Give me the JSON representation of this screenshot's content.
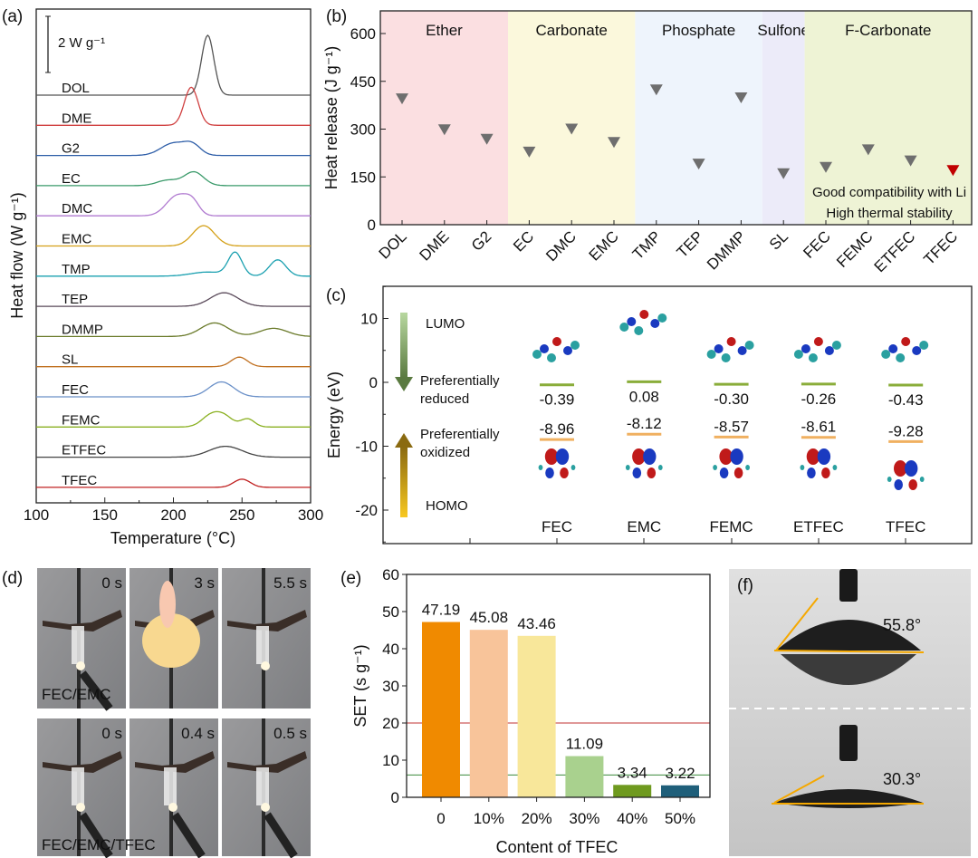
{
  "panel_labels": {
    "a": "(a)",
    "b": "(b)",
    "c": "(c)",
    "d": "(d)",
    "e": "(e)",
    "f": "(f)"
  },
  "chart_data": [
    {
      "type": "line",
      "title": "",
      "xlabel": "Temperature (°C)",
      "ylabel": "Heat flow (W g⁻¹)",
      "xlim": [
        100,
        300
      ],
      "xticks": [
        "100",
        "150",
        "200",
        "250",
        "300"
      ],
      "scale_bar": "2 W g⁻¹",
      "peak_format": "each peak = [temperature °C, height W/g, width °C]",
      "series": [
        {
          "name": "DOL",
          "color": "#555555",
          "peaks": [
            [
              225,
              2.2,
              4.5
            ]
          ]
        },
        {
          "name": "DME",
          "color": "#d04040",
          "peaks": [
            [
              213,
              1.4,
              5
            ]
          ]
        },
        {
          "name": "G2",
          "color": "#2e5ea8",
          "peaks": [
            [
              200,
              0.45,
              9
            ],
            [
              214,
              0.35,
              6
            ]
          ]
        },
        {
          "name": "EC",
          "color": "#3a9a6a",
          "peaks": [
            [
              196,
              0.2,
              8
            ],
            [
              215,
              0.5,
              7
            ]
          ]
        },
        {
          "name": "DMC",
          "color": "#b07ad0",
          "peaks": [
            [
              203,
              0.75,
              8
            ],
            [
              214,
              0.4,
              5
            ]
          ]
        },
        {
          "name": "EMC",
          "color": "#d4a017",
          "peaks": [
            [
              222,
              0.75,
              8
            ]
          ]
        },
        {
          "name": "TMP",
          "color": "#1aa0b0",
          "peaks": [
            [
              245,
              0.85,
              5
            ],
            [
              276,
              0.6,
              6
            ],
            [
              225,
              0.15,
              12
            ]
          ]
        },
        {
          "name": "TEP",
          "color": "#5a4a5a",
          "peaks": [
            [
              237,
              0.5,
              10
            ]
          ]
        },
        {
          "name": "DMMP",
          "color": "#6a7a2a",
          "peaks": [
            [
              230,
              0.5,
              10
            ],
            [
              273,
              0.3,
              10
            ]
          ]
        },
        {
          "name": "SL",
          "color": "#c07020",
          "peaks": [
            [
              248,
              0.35,
              6
            ]
          ]
        },
        {
          "name": "FEC",
          "color": "#6a90c8",
          "peaks": [
            [
              235,
              0.55,
              9
            ]
          ]
        },
        {
          "name": "FEMC",
          "color": "#8ab020",
          "peaks": [
            [
              228,
              0.45,
              7
            ],
            [
              238,
              0.3,
              6
            ],
            [
              254,
              0.3,
              5
            ]
          ]
        },
        {
          "name": "ETFEC",
          "color": "#444444",
          "peaks": [
            [
              238,
              0.4,
              12
            ]
          ]
        },
        {
          "name": "TFEC",
          "color": "#c02020",
          "peaks": [
            [
              250,
              0.3,
              6
            ]
          ]
        }
      ]
    },
    {
      "type": "scatter",
      "ylabel": "Heat release (J g⁻¹)",
      "ylim": [
        0,
        680
      ],
      "yticks": [
        "0",
        "150",
        "300",
        "450",
        "600"
      ],
      "categories": [
        "DOL",
        "DME",
        "G2",
        "EC",
        "DMC",
        "EMC",
        "TMP",
        "TEP",
        "DMMP",
        "SL",
        "FEC",
        "FEMC",
        "ETFEC",
        "TFEC"
      ],
      "values": [
        395,
        298,
        268,
        228,
        300,
        258,
        423,
        190,
        398,
        160,
        180,
        235,
        200,
        170
      ],
      "marker_color": "#6e6e6e",
      "highlight": {
        "category": "TFEC",
        "color": "#c00000"
      },
      "groups": [
        {
          "label": "Ether",
          "from": 0,
          "to": 2,
          "color": "#fbdfe1"
        },
        {
          "label": "Carbonate",
          "from": 3,
          "to": 5,
          "color": "#fbf8dc"
        },
        {
          "label": "Phosphate",
          "from": 6,
          "to": 8,
          "color": "#eef4fc"
        },
        {
          "label": "Sulfone",
          "from": 9,
          "to": 9,
          "color": "#ecebf9"
        },
        {
          "label": "F-Carbonate",
          "from": 10,
          "to": 13,
          "color": "#eef3d5"
        }
      ],
      "annotations": [
        "Good compatibility with Li",
        "High thermal stability"
      ]
    },
    {
      "type": "energy-level",
      "ylabel": "Energy (eV)",
      "ylim": [
        -25,
        15
      ],
      "yticks": [
        "-20",
        "-10",
        "0",
        "10"
      ],
      "categories": [
        "FEC",
        "EMC",
        "FEMC",
        "ETFEC",
        "TFEC"
      ],
      "lumo": [
        -0.39,
        0.08,
        -0.3,
        -0.26,
        -0.43
      ],
      "homo": [
        -8.96,
        -8.12,
        -8.57,
        -8.61,
        -9.28
      ],
      "lumo_labels": [
        "-0.39",
        "0.08",
        "-0.30",
        "-0.26",
        "-0.43"
      ],
      "homo_labels": [
        "-8.96",
        "-8.12",
        "-8.57",
        "-8.61",
        "-9.28"
      ],
      "lumo_color": "#8aad3a",
      "homo_color": "#f0b060",
      "annotations": {
        "lumo": "LUMO",
        "reduced": [
          "Preferentially",
          "reduced"
        ],
        "oxidized": [
          "Preferentially",
          "oxidized"
        ],
        "homo": "HOMO"
      }
    },
    {
      "type": "bar",
      "xlabel": "Content of TFEC",
      "ylabel": "SET (s g⁻¹)",
      "ylim": [
        0,
        60
      ],
      "yticks": [
        "0",
        "10",
        "20",
        "30",
        "40",
        "50",
        "60"
      ],
      "categories": [
        "0",
        "10%",
        "20%",
        "30%",
        "40%",
        "50%"
      ],
      "values": [
        47.19,
        45.08,
        43.46,
        11.09,
        3.34,
        3.22
      ],
      "value_labels": [
        "47.19",
        "45.08",
        "43.46",
        "11.09",
        "3.34",
        "3.22"
      ],
      "colors": [
        "#f08a00",
        "#f8c49a",
        "#f8e79a",
        "#a9d18e",
        "#6f9a1f",
        "#1f5f7a"
      ],
      "reference_lines": [
        {
          "value": 20,
          "color": "#c03030"
        },
        {
          "value": 6,
          "color": "#3a8a3a"
        }
      ]
    }
  ],
  "flame_test": {
    "top_label": "FEC/EMC",
    "bottom_label": "FEC/EMC/TFEC",
    "top_times": [
      "0 s",
      "3 s",
      "5.5 s"
    ],
    "bottom_times": [
      "0 s",
      "0.4 s",
      "0.5 s"
    ]
  },
  "contact_angle": {
    "angles": [
      "55.8°",
      "30.3°"
    ],
    "line_color": "#f5a800"
  }
}
